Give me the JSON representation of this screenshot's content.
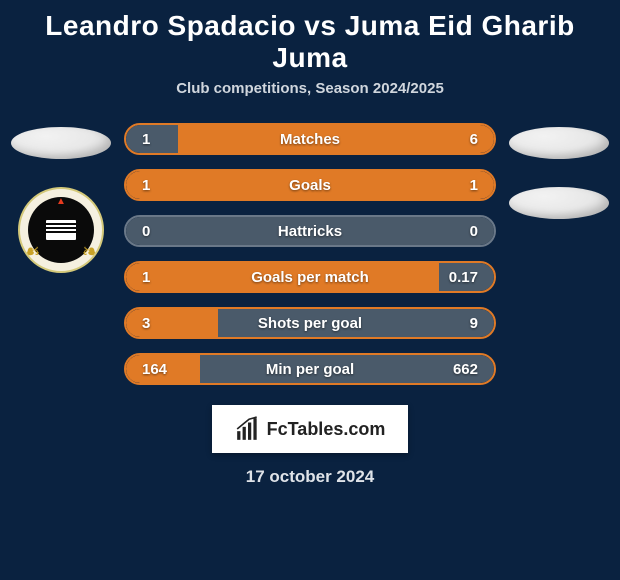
{
  "title": "Leandro Spadacio vs Juma Eid Gharib Juma",
  "subtitle": "Club competitions, Season 2024/2025",
  "date": "17 october 2024",
  "footer_brand": "FcTables.com",
  "colors": {
    "background": "#0a2240",
    "left_bar": "#e07a26",
    "right_bar": "#4a5a6a",
    "border": "#e07a26",
    "border_gray": "#6a7888",
    "avatar": "#e8e8e8"
  },
  "fontsize": {
    "title": 28,
    "subtitle": 15,
    "stat_label": 15,
    "stat_value": 15,
    "date": 17,
    "brand": 18
  },
  "stats": [
    {
      "label": "Matches",
      "left_val": "1",
      "right_val": "6",
      "left_num": 1,
      "right_num": 6,
      "left_pct": 14,
      "right_pct": 86,
      "higher_is_better": true,
      "left_win": false,
      "right_win": true
    },
    {
      "label": "Goals",
      "left_val": "1",
      "right_val": "1",
      "left_num": 1,
      "right_num": 1,
      "left_pct": 50,
      "right_pct": 50,
      "higher_is_better": true,
      "left_win": true,
      "right_win": true
    },
    {
      "label": "Hattricks",
      "left_val": "0",
      "right_val": "0",
      "left_num": 0,
      "right_num": 0,
      "left_pct": 50,
      "right_pct": 50,
      "higher_is_better": true,
      "left_win": false,
      "right_win": false
    },
    {
      "label": "Goals per match",
      "left_val": "1",
      "right_val": "0.17",
      "left_num": 1,
      "right_num": 0.17,
      "left_pct": 85,
      "right_pct": 15,
      "higher_is_better": true,
      "left_win": true,
      "right_win": false
    },
    {
      "label": "Shots per goal",
      "left_val": "3",
      "right_val": "9",
      "left_num": 3,
      "right_num": 9,
      "left_pct": 25,
      "right_pct": 75,
      "higher_is_better": false,
      "left_win": true,
      "right_win": false
    },
    {
      "label": "Min per goal",
      "left_val": "164",
      "right_val": "662",
      "left_num": 164,
      "right_num": 662,
      "left_pct": 20,
      "right_pct": 80,
      "higher_is_better": false,
      "left_win": true,
      "right_win": false
    }
  ]
}
